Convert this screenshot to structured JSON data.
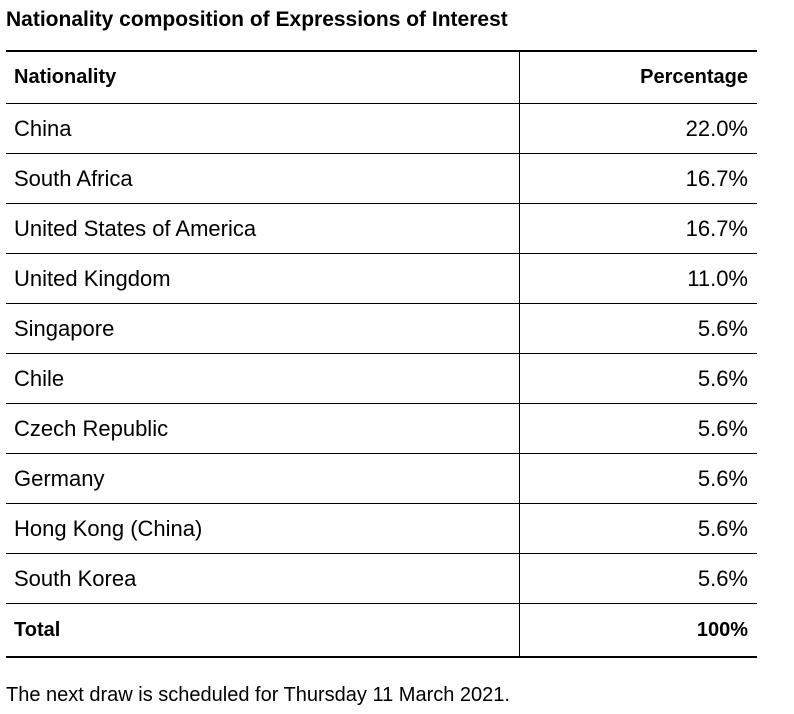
{
  "title": "Nationality composition of Expressions of Interest",
  "table": {
    "headers": {
      "nationality": "Nationality",
      "percentage": "Percentage"
    },
    "rows": [
      {
        "nationality": "China",
        "percentage": "22.0%"
      },
      {
        "nationality": "South Africa",
        "percentage": "16.7%"
      },
      {
        "nationality": "United States of America",
        "percentage": "16.7%"
      },
      {
        "nationality": "United Kingdom",
        "percentage": "11.0%"
      },
      {
        "nationality": "Singapore",
        "percentage": "5.6%"
      },
      {
        "nationality": "Chile",
        "percentage": "5.6%"
      },
      {
        "nationality": "Czech Republic",
        "percentage": "5.6%"
      },
      {
        "nationality": "Germany",
        "percentage": "5.6%"
      },
      {
        "nationality": "Hong Kong (China)",
        "percentage": "5.6%"
      },
      {
        "nationality": "South Korea",
        "percentage": "5.6%"
      }
    ],
    "total": {
      "label": "Total",
      "value": "100%"
    }
  },
  "footnote": "The next draw is scheduled for Thursday 11 March 2021."
}
